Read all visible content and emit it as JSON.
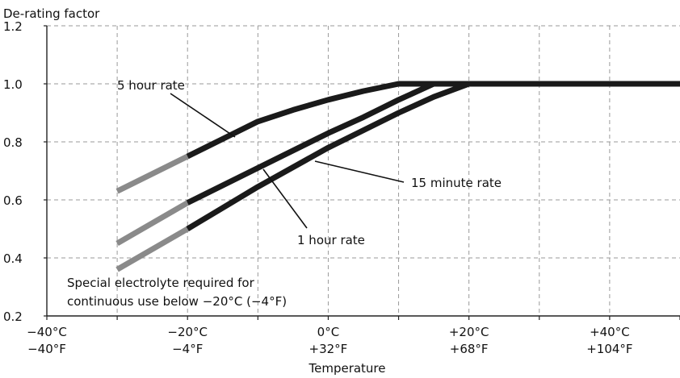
{
  "chart_data": {
    "type": "line",
    "ylabel": "De-rating factor",
    "xlabel": "Temperature",
    "ylim": [
      0.2,
      1.2
    ],
    "xlim": [
      -40,
      50
    ],
    "grid": true,
    "yticks": [
      "0.2",
      "0.4",
      "0.6",
      "0.8",
      "1.0",
      "1.2"
    ],
    "xticks": [
      {
        "value": -40,
        "label_c": "−40°C",
        "label_f": "−40°F"
      },
      {
        "value": -20,
        "label_c": "−20°C",
        "label_f": "−4°F"
      },
      {
        "value": 0,
        "label_c": "0°C",
        "label_f": "+32°F"
      },
      {
        "value": 20,
        "label_c": "+20°C",
        "label_f": "+68°F"
      },
      {
        "value": 40,
        "label_c": "+40°C",
        "label_f": "+104°F"
      }
    ],
    "series": [
      {
        "name": "5 hour rate",
        "low_temp": {
          "x": [
            -30,
            -20
          ],
          "y": [
            0.63,
            0.75
          ]
        },
        "normal": {
          "x": [
            -20,
            -15,
            -10,
            -5,
            0,
            5,
            10,
            13,
            20,
            30,
            40,
            50
          ],
          "y": [
            0.75,
            0.81,
            0.87,
            0.91,
            0.945,
            0.975,
            1.0,
            1.0,
            1.0,
            1.0,
            1.0,
            1.0
          ]
        }
      },
      {
        "name": "1 hour rate",
        "low_temp": {
          "x": [
            -30,
            -20
          ],
          "y": [
            0.45,
            0.59
          ]
        },
        "normal": {
          "x": [
            -20,
            -10,
            0,
            5,
            10,
            15,
            20,
            30,
            40,
            50
          ],
          "y": [
            0.59,
            0.71,
            0.83,
            0.885,
            0.945,
            1.0,
            1.0,
            1.0,
            1.0,
            1.0
          ]
        }
      },
      {
        "name": "15 minute rate",
        "low_temp": {
          "x": [
            -30,
            -20
          ],
          "y": [
            0.36,
            0.5
          ]
        },
        "normal": {
          "x": [
            -20,
            -10,
            0,
            5,
            10,
            15,
            20,
            30,
            40,
            50
          ],
          "y": [
            0.5,
            0.645,
            0.78,
            0.84,
            0.9,
            0.955,
            1.0,
            1.0,
            1.0,
            1.0
          ]
        }
      }
    ],
    "colors": {
      "normal": "#1a1a1a",
      "low_temp": "#8a8a8a"
    },
    "annotation_lines": [
      "Special electrolyte required for",
      "continuous use below −20°C (−4°F)"
    ]
  }
}
